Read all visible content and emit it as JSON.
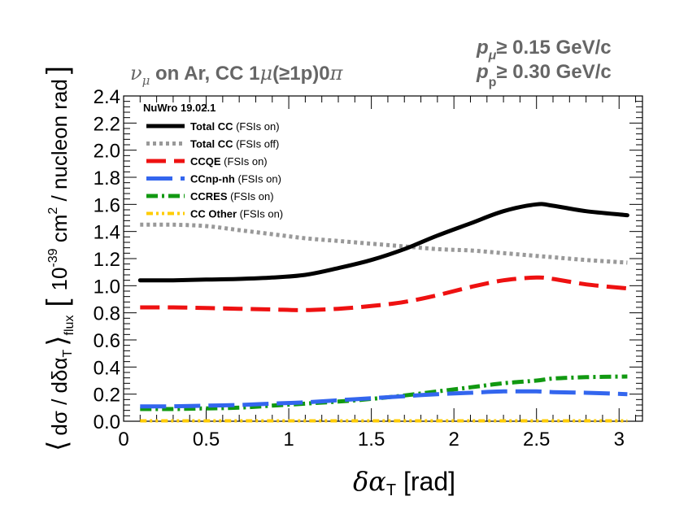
{
  "chart_data": {
    "type": "line",
    "header_left": "νμ on Ar, CC 1μ(≥1p)0π",
    "header_right_line1": "pμ ≥ 0.15 GeV/c",
    "header_right_line2": "pp ≥ 0.30 GeV/c",
    "xlabel": "δαT [rad]",
    "ylabel_left": "⟨ dσ/dδαT ⟩flux",
    "ylabel_units_top": "10⁻³⁹ cm²",
    "ylabel_units_bottom": "nucleon rad",
    "xlim": [
      0,
      3.1416
    ],
    "ylim": [
      0,
      2.4
    ],
    "x_ticks": [
      "0",
      "0.5",
      "1",
      "1.5",
      "2",
      "2.5",
      "3"
    ],
    "y_ticks": [
      "0.0",
      "0.2",
      "0.4",
      "0.6",
      "0.8",
      "1.0",
      "1.2",
      "1.4",
      "1.6",
      "1.8",
      "2.0",
      "2.2",
      "2.4"
    ],
    "legend_title": "NuWro 19.02.1",
    "legend_placement": "top-left",
    "x": [
      0.1,
      0.3,
      0.5,
      0.7,
      0.9,
      1.1,
      1.3,
      1.5,
      1.7,
      1.9,
      2.1,
      2.3,
      2.5,
      2.6,
      2.8,
      3.05
    ],
    "series": [
      {
        "name": "Total CC",
        "note": "(FSIs on)",
        "color": "#000000",
        "style": "solid",
        "values": [
          1.04,
          1.04,
          1.045,
          1.05,
          1.06,
          1.08,
          1.13,
          1.19,
          1.27,
          1.37,
          1.46,
          1.55,
          1.6,
          1.59,
          1.55,
          1.52
        ]
      },
      {
        "name": "Total CC",
        "note": "(FSIs off)",
        "color": "#999999",
        "style": "dotted",
        "values": [
          1.45,
          1.45,
          1.44,
          1.41,
          1.38,
          1.35,
          1.33,
          1.31,
          1.29,
          1.27,
          1.26,
          1.24,
          1.22,
          1.21,
          1.19,
          1.17
        ]
      },
      {
        "name": "CCQE",
        "note": "(FSIs on)",
        "color": "#ee1111",
        "style": "dashed",
        "values": [
          0.84,
          0.84,
          0.835,
          0.83,
          0.825,
          0.82,
          0.83,
          0.85,
          0.88,
          0.93,
          0.99,
          1.04,
          1.06,
          1.05,
          1.01,
          0.98
        ]
      },
      {
        "name": "CCnp-nh",
        "note": "(FSIs on)",
        "color": "#3366ee",
        "style": "longdash",
        "values": [
          0.11,
          0.11,
          0.115,
          0.12,
          0.13,
          0.14,
          0.155,
          0.17,
          0.185,
          0.2,
          0.21,
          0.22,
          0.22,
          0.215,
          0.21,
          0.2
        ]
      },
      {
        "name": "CCRES",
        "note": "(FSIs on)",
        "color": "#119911",
        "style": "dashdot",
        "values": [
          0.09,
          0.09,
          0.095,
          0.1,
          0.115,
          0.13,
          0.145,
          0.165,
          0.19,
          0.22,
          0.25,
          0.28,
          0.3,
          0.315,
          0.325,
          0.33
        ]
      },
      {
        "name": "CC Other",
        "note": "(FSIs on)",
        "color": "#ffcc00",
        "style": "dashdotdot",
        "values": [
          0.003,
          0.003,
          0.003,
          0.003,
          0.003,
          0.003,
          0.003,
          0.003,
          0.003,
          0.003,
          0.003,
          0.003,
          0.003,
          0.003,
          0.003,
          0.003
        ]
      }
    ]
  }
}
